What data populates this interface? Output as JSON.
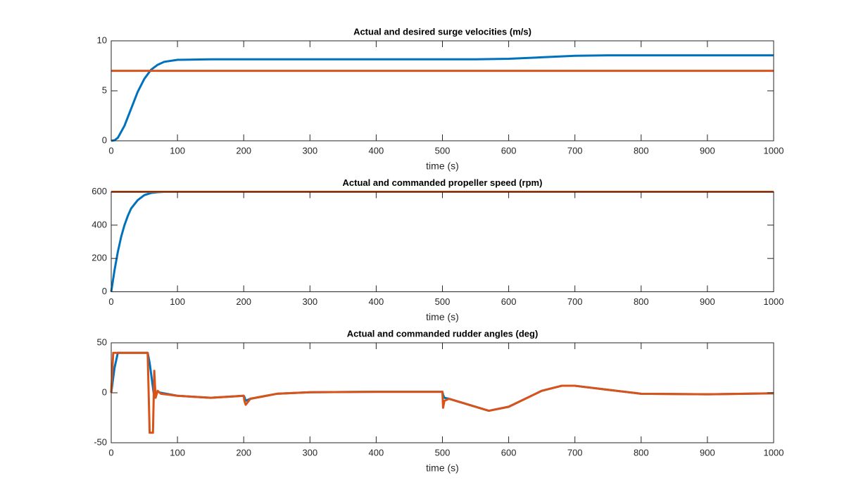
{
  "chart_data": [
    {
      "type": "line",
      "title": "Actual and desired surge velocities (m/s)",
      "x_label": "time (s)",
      "x": [
        0,
        5,
        10,
        20,
        30,
        40,
        50,
        60,
        70,
        80,
        100,
        150,
        200,
        300,
        400,
        500,
        550,
        600,
        650,
        700,
        750,
        800,
        900,
        1000
      ],
      "series": [
        {
          "color": "#0072BD",
          "values": [
            0,
            0.05,
            0.3,
            1.5,
            3.2,
            4.9,
            6.2,
            7.1,
            7.6,
            7.9,
            8.1,
            8.15,
            8.15,
            8.15,
            8.15,
            8.15,
            8.15,
            8.2,
            8.35,
            8.5,
            8.55,
            8.55,
            8.55,
            8.55
          ]
        },
        {
          "color": "#D95319",
          "values": [
            7,
            7,
            7,
            7,
            7,
            7,
            7,
            7,
            7,
            7,
            7,
            7,
            7,
            7,
            7,
            7,
            7,
            7,
            7,
            7,
            7,
            7,
            7,
            7
          ]
        }
      ],
      "xlim": [
        0,
        1000
      ],
      "xticks": [
        0,
        100,
        200,
        300,
        400,
        500,
        600,
        700,
        800,
        900,
        1000
      ],
      "ylim": [
        0,
        10
      ],
      "yticks": [
        0,
        5,
        10
      ]
    },
    {
      "type": "line",
      "title": "Actual and commanded propeller speed (rpm)",
      "x_label": "time (s)",
      "x": [
        0,
        5,
        10,
        15,
        20,
        25,
        30,
        40,
        50,
        60,
        70,
        80,
        100,
        1000
      ],
      "series": [
        {
          "color": "#0072BD",
          "values": [
            0,
            130,
            240,
            330,
            400,
            455,
            500,
            550,
            580,
            593,
            598,
            600,
            600,
            600
          ]
        },
        {
          "color": "#D95319",
          "values": [
            600,
            600,
            600,
            600,
            600,
            600,
            600,
            600,
            600,
            600,
            600,
            600,
            600,
            600
          ]
        }
      ],
      "xlim": [
        0,
        1000
      ],
      "xticks": [
        0,
        100,
        200,
        300,
        400,
        500,
        600,
        700,
        800,
        900,
        1000
      ],
      "ylim": [
        0,
        600
      ],
      "yticks": [
        0,
        200,
        400,
        600
      ]
    },
    {
      "type": "line",
      "title": "Actual and commanded rudder angles (deg)",
      "x_label": "time (s)",
      "x": [
        0,
        3,
        5,
        10,
        50,
        55,
        58,
        60,
        63,
        65,
        67,
        70,
        75,
        100,
        150,
        200,
        201,
        203,
        210,
        250,
        300,
        400,
        500,
        501,
        503,
        510,
        530,
        570,
        600,
        650,
        680,
        700,
        750,
        800,
        900,
        1000
      ],
      "series": [
        {
          "color": "#0072BD",
          "values": [
            0,
            15,
            25,
            40,
            40,
            40,
            30,
            20,
            5,
            -5,
            0,
            1,
            0,
            -3,
            -5,
            -3,
            -4,
            -8,
            -6,
            -1,
            0.5,
            1,
            1,
            -2,
            -5,
            -6,
            -10,
            -18,
            -14,
            2,
            7,
            7,
            3,
            -1,
            -1.5,
            -0.5
          ]
        },
        {
          "color": "#D95319",
          "values": [
            0,
            40,
            40,
            40,
            40,
            40,
            -40,
            -40,
            -40,
            22,
            -5,
            2,
            -1,
            -3,
            -5,
            -3,
            -8,
            -12,
            -6,
            -1,
            0.5,
            1,
            1,
            -15,
            -8,
            -6,
            -10,
            -18,
            -14,
            2,
            7,
            7,
            3,
            -1,
            -1.5,
            -0.5
          ]
        }
      ],
      "xlim": [
        0,
        1000
      ],
      "xticks": [
        0,
        100,
        200,
        300,
        400,
        500,
        600,
        700,
        800,
        900,
        1000
      ],
      "ylim": [
        -50,
        50
      ],
      "yticks": [
        -50,
        0,
        50
      ]
    }
  ]
}
